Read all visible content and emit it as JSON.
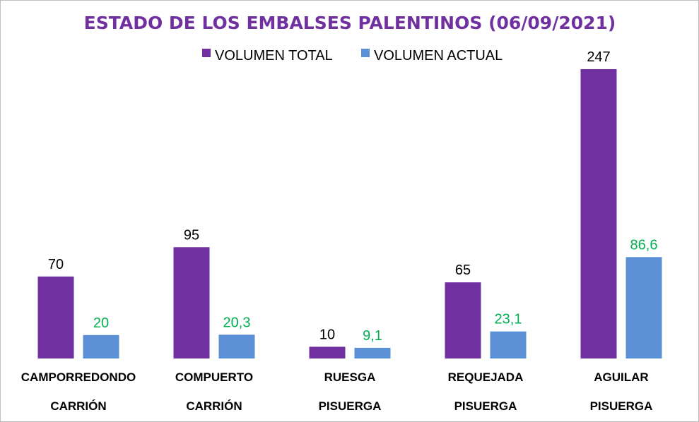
{
  "colors": {
    "title": "#7030a0",
    "total": "#7030a0",
    "actual": "#5b8fd6",
    "actual_label": "#00b050"
  },
  "chart_data": {
    "type": "bar",
    "title": "ESTADO DE LOS EMBALSES PALENTINOS (06/09/2021)",
    "legend_position": "top",
    "categories": [
      "CAMPORREDONDO",
      "COMPUERTO",
      "RUESGA",
      "REQUEJADA",
      "AGUILAR"
    ],
    "rivers": [
      "CARRIÓN",
      "CARRIÓN",
      "PISUERGA",
      "PISUERGA",
      "PISUERGA"
    ],
    "series": [
      {
        "name": "VOLUMEN TOTAL",
        "values": [
          70,
          95,
          10,
          65,
          247
        ],
        "labels": [
          "70",
          "95",
          "10",
          "65",
          "247"
        ]
      },
      {
        "name": "VOLUMEN ACTUAL",
        "values": [
          20,
          20.3,
          9.1,
          23.1,
          86.6
        ],
        "labels": [
          "20",
          "20,3",
          "9,1",
          "23,1",
          "86,6"
        ]
      }
    ],
    "ylim": [
      0,
      247
    ],
    "grid": false,
    "xlabel": "",
    "ylabel": ""
  }
}
